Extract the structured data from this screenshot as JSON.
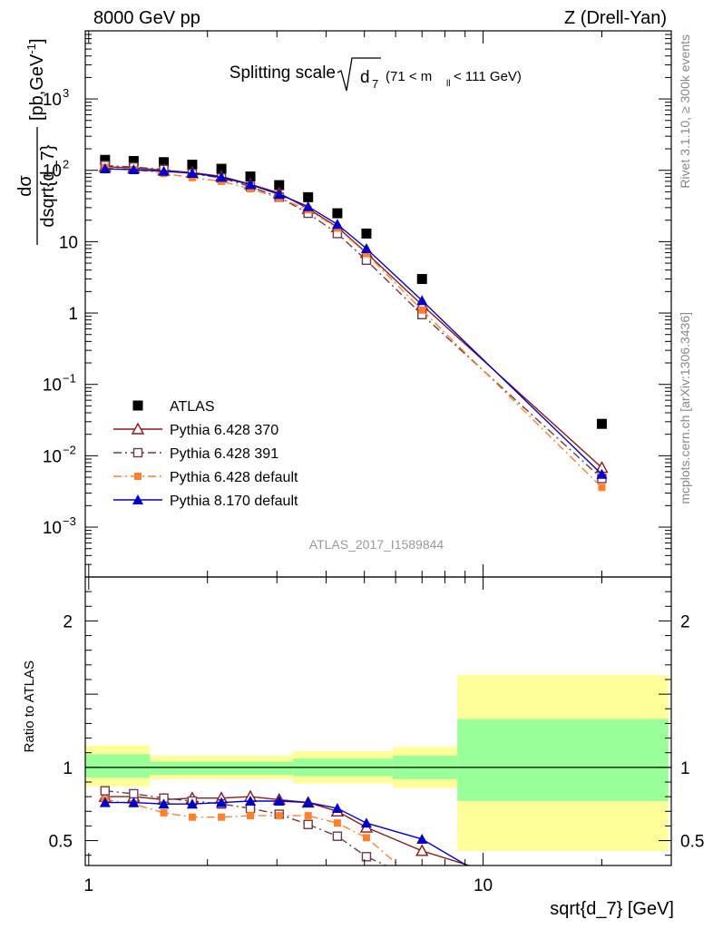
{
  "header": {
    "left": "8000 GeV pp",
    "right": "Z (Drell-Yan)"
  },
  "side_labels": {
    "rivet": "Rivet 3.1.10, ≥ 300k events",
    "mcplots": "mcplots.cern.ch [arXiv:1306.3436]"
  },
  "watermark": "ATLAS_2017_I1589844",
  "title": {
    "main": "Splitting scale",
    "sqrt_var": "d",
    "sqrt_sub": "7",
    "cut_open": "(71 < m",
    "cut_sub": "ll",
    "cut_close": " < 111 GeV)"
  },
  "colors": {
    "atlas": "#000000",
    "py370": "#8b1a1a",
    "py391": "#6e3a4a",
    "py6def": "#ff7f2a",
    "py8def": "#0000cc",
    "band_inner": "#99ff99",
    "band_outer": "#ffff99"
  },
  "chart_data": [
    {
      "type": "scatter",
      "panel": "main",
      "xlabel": "sqrt{d_7} [GeV]",
      "ylabel_num": "dσ",
      "ylabel_den": "dsqrt{d_7}",
      "ylabel_unit": "[pb,GeV",
      "ylabel_unit_sup": "-1",
      "ylabel_unit_close": "]",
      "xscale": "log",
      "yscale": "log",
      "xlim": [
        0.98,
        30
      ],
      "ylim": [
        0.0002,
        9000
      ],
      "y_ticks": [
        {
          "value": 0.001,
          "base": "10",
          "exp": "−3"
        },
        {
          "value": 0.01,
          "base": "10",
          "exp": "−2"
        },
        {
          "value": 0.1,
          "base": "10",
          "exp": "−1"
        },
        {
          "value": 1,
          "label": "1"
        },
        {
          "value": 10,
          "label": "10"
        },
        {
          "value": 100,
          "base": "10",
          "exp": "2"
        },
        {
          "value": 1000,
          "base": "10",
          "exp": "3"
        }
      ],
      "legend_position": "lower-left",
      "series": [
        {
          "name": "ATLAS",
          "key": "atlas",
          "marker": "square-filled",
          "line": "none",
          "x": [
            1.1,
            1.3,
            1.55,
            1.83,
            2.17,
            2.57,
            3.04,
            3.6,
            4.27,
            5.06,
            7.0,
            20.0
          ],
          "y": [
            140,
            135,
            130,
            120,
            105,
            82,
            62,
            42,
            25,
            13,
            3.0,
            0.028
          ]
        },
        {
          "name": "Pythia 6.428 370",
          "key": "py370",
          "marker": "triangle-open",
          "line": "solid",
          "x": [
            1.1,
            1.3,
            1.55,
            1.83,
            2.17,
            2.57,
            3.04,
            3.6,
            4.27,
            5.06,
            7.0,
            20.0
          ],
          "y": [
            112,
            108,
            100,
            93,
            82,
            64,
            48,
            29,
            16,
            7.0,
            1.3,
            0.0068
          ]
        },
        {
          "name": "Pythia 6.428 391",
          "key": "py391",
          "marker": "square-open",
          "line": "dashdot",
          "x": [
            1.1,
            1.3,
            1.55,
            1.83,
            2.17,
            2.57,
            3.04,
            3.6,
            4.27,
            5.06,
            7.0,
            20.0
          ],
          "y": [
            117,
            111,
            103,
            90,
            78,
            59,
            42,
            25,
            13,
            5.5,
            0.95,
            0.0048
          ]
        },
        {
          "name": "Pythia 6.428 default",
          "key": "py6def",
          "marker": "square-filled-small",
          "line": "dashdot",
          "x": [
            1.1,
            1.3,
            1.55,
            1.83,
            2.17,
            2.57,
            3.04,
            3.6,
            4.27,
            5.06,
            7.0,
            20.0
          ],
          "y": [
            110,
            102,
            90,
            79,
            70,
            55,
            41,
            28,
            15.5,
            6.8,
            1.1,
            0.0036
          ]
        },
        {
          "name": "Pythia 8.170 default",
          "key": "py8def",
          "marker": "triangle-filled",
          "line": "solid",
          "x": [
            1.1,
            1.3,
            1.55,
            1.83,
            2.17,
            2.57,
            3.04,
            3.6,
            4.27,
            5.06,
            7.0,
            20.0
          ],
          "y": [
            105,
            102,
            97,
            91,
            80,
            63,
            46,
            31,
            17.5,
            8.0,
            1.5,
            0.0055
          ]
        }
      ]
    },
    {
      "type": "line",
      "panel": "ratio",
      "ylabel": "Ratio to ATLAS",
      "xlabel": "sqrt{d_7} [GeV]",
      "xscale": "log",
      "xlim": [
        0.98,
        30
      ],
      "ylim": [
        0.33,
        2.3
      ],
      "y_ticks": [
        {
          "value": 0.5,
          "label": "0.5"
        },
        {
          "value": 1,
          "label": "1"
        },
        {
          "value": 2,
          "label": "2"
        }
      ],
      "x_ticks": [
        {
          "value": 1,
          "label": "1"
        },
        {
          "value": 10,
          "label": "10"
        }
      ],
      "bands": [
        {
          "x0": 0.98,
          "x1": 1.43,
          "inner": [
            0.93,
            1.09
          ],
          "outer": [
            0.87,
            1.15
          ]
        },
        {
          "x0": 1.43,
          "x1": 3.3,
          "inner": [
            0.95,
            1.04
          ],
          "outer": [
            0.92,
            1.08
          ]
        },
        {
          "x0": 3.3,
          "x1": 5.9,
          "inner": [
            0.94,
            1.06
          ],
          "outer": [
            0.89,
            1.11
          ]
        },
        {
          "x0": 5.9,
          "x1": 8.6,
          "inner": [
            0.92,
            1.08
          ],
          "outer": [
            0.86,
            1.14
          ]
        },
        {
          "x0": 8.6,
          "x1": 29.5,
          "inner": [
            0.77,
            1.33
          ],
          "outer": [
            0.43,
            1.63
          ]
        }
      ],
      "series": [
        {
          "name": "Pythia 6.428 370",
          "key": "py370",
          "marker": "triangle-open",
          "line": "solid",
          "x": [
            1.1,
            1.3,
            1.55,
            1.83,
            2.17,
            2.57,
            3.04,
            3.6,
            4.27,
            5.06,
            7.0,
            10.0
          ],
          "y": [
            0.8,
            0.8,
            0.78,
            0.79,
            0.79,
            0.8,
            0.78,
            0.76,
            0.7,
            0.59,
            0.43,
            0.3
          ]
        },
        {
          "name": "Pythia 6.428 391",
          "key": "py391",
          "marker": "square-open",
          "line": "dashdot",
          "x": [
            1.1,
            1.3,
            1.55,
            1.83,
            2.17,
            2.57,
            3.04,
            3.6,
            4.27,
            5.06,
            6.0
          ],
          "y": [
            0.84,
            0.82,
            0.79,
            0.77,
            0.75,
            0.72,
            0.68,
            0.61,
            0.53,
            0.39,
            0.3
          ]
        },
        {
          "name": "Pythia 6.428 default",
          "key": "py6def",
          "marker": "square-filled-small",
          "line": "dashdot",
          "x": [
            1.1,
            1.3,
            1.55,
            1.83,
            2.17,
            2.57,
            3.04,
            3.6,
            4.27,
            5.06,
            6.3
          ],
          "y": [
            0.78,
            0.75,
            0.69,
            0.66,
            0.66,
            0.67,
            0.67,
            0.67,
            0.62,
            0.52,
            0.3
          ]
        },
        {
          "name": "Pythia 8.170 default",
          "key": "py8def",
          "marker": "triangle-filled",
          "line": "solid",
          "x": [
            1.1,
            1.3,
            1.55,
            1.83,
            2.17,
            2.57,
            3.04,
            3.6,
            4.27,
            5.06,
            7.0,
            9.5
          ],
          "y": [
            0.76,
            0.76,
            0.75,
            0.75,
            0.76,
            0.77,
            0.77,
            0.76,
            0.72,
            0.62,
            0.51,
            0.3
          ]
        }
      ]
    }
  ]
}
